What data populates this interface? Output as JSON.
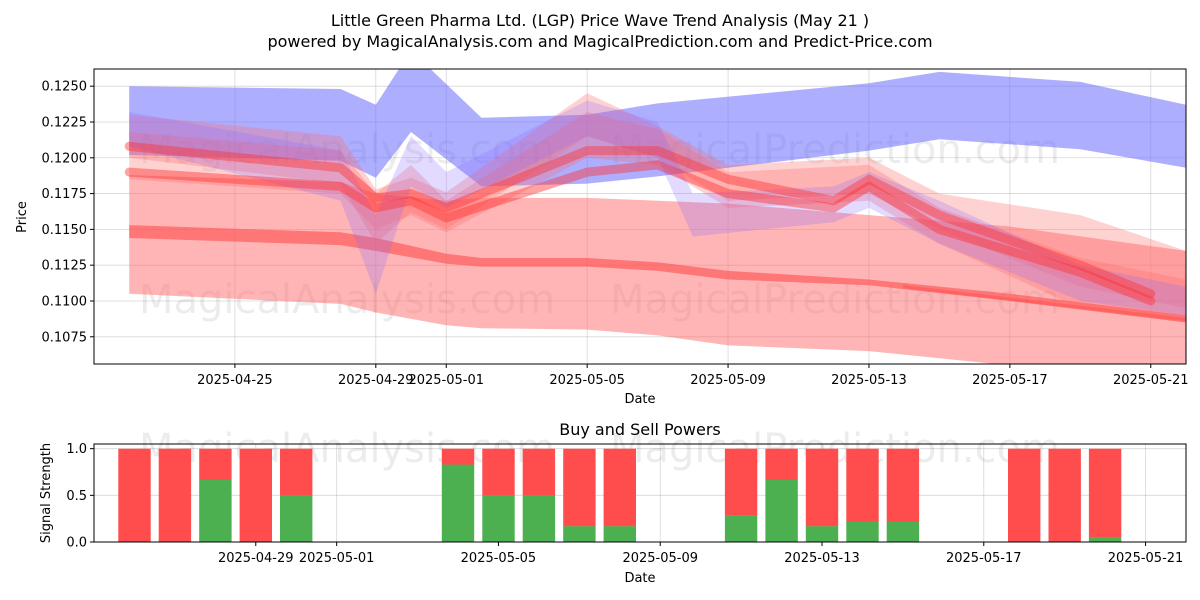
{
  "title_line1": "Little Green Pharma Ltd. (LGP) Price Wave Trend Analysis (May 21 )",
  "title_line2": "powered by MagicalAnalysis.com and MagicalPrediction.com and Predict-Price.com",
  "watermarks": [
    "MagicalAnalysis.com",
    "MagicalPrediction.com"
  ],
  "chart_data": [
    {
      "type": "area",
      "title": "",
      "xlabel": "Date",
      "ylabel": "Price",
      "ylim": [
        0.1056,
        0.1262
      ],
      "xlim": [
        "2025-04-21",
        "2025-05-22"
      ],
      "grid": true,
      "yticks": [
        0.1075,
        0.11,
        0.1125,
        0.115,
        0.1175,
        0.12,
        0.1225,
        0.125
      ],
      "ytick_labels": [
        "0.1075",
        "0.1100",
        "0.1125",
        "0.1150",
        "0.1175",
        "0.1200",
        "0.1225",
        "0.1250"
      ],
      "xticks": [
        "2025-04-25",
        "2025-04-29",
        "2025-05-01",
        "2025-05-05",
        "2025-05-09",
        "2025-05-13",
        "2025-05-17",
        "2025-05-21"
      ],
      "colors": {
        "buy_band": "#6b6bff",
        "sell_band": "#ff6b6b",
        "sell_line": "#ff4d4d"
      },
      "bands": [
        {
          "color": "#6b6bff",
          "opacity": 0.55,
          "x": [
            "2025-04-22",
            "2025-04-28",
            "2025-04-29",
            "2025-04-30",
            "2025-05-02",
            "2025-05-05",
            "2025-05-07",
            "2025-05-13",
            "2025-05-15",
            "2025-05-19",
            "2025-05-22"
          ],
          "upper": [
            0.125,
            0.1248,
            0.1237,
            0.1275,
            0.1228,
            0.123,
            0.1238,
            0.1252,
            0.126,
            0.1253,
            0.1237
          ],
          "lower": [
            0.1202,
            0.1198,
            0.1186,
            0.1218,
            0.118,
            0.1182,
            0.1187,
            0.1205,
            0.1213,
            0.1206,
            0.1193
          ]
        },
        {
          "color": "#ff6b6b",
          "opacity": 0.5,
          "x": [
            "2025-04-22",
            "2025-04-28",
            "2025-04-29",
            "2025-05-01",
            "2025-05-02",
            "2025-05-05",
            "2025-05-07",
            "2025-05-09",
            "2025-05-13",
            "2025-05-17",
            "2025-05-22"
          ],
          "upper": [
            0.1188,
            0.1183,
            0.1175,
            0.117,
            0.1172,
            0.1172,
            0.117,
            0.1168,
            0.116,
            0.1152,
            0.1135
          ],
          "lower": [
            0.1105,
            0.1098,
            0.1092,
            0.1083,
            0.1081,
            0.108,
            0.1076,
            0.1069,
            0.1065,
            0.1055,
            0.1048
          ]
        },
        {
          "color": "#ff4d4d",
          "opacity": 0.6,
          "x": [
            "2025-04-22",
            "2025-04-28",
            "2025-04-29",
            "2025-05-01",
            "2025-05-02",
            "2025-05-05",
            "2025-05-07",
            "2025-05-09",
            "2025-05-13",
            "2025-05-17",
            "2025-05-22"
          ],
          "upper": [
            0.1153,
            0.1148,
            0.1144,
            0.1133,
            0.113,
            0.113,
            0.1127,
            0.1121,
            0.1115,
            0.1105,
            0.109
          ],
          "lower": [
            0.1144,
            0.1139,
            0.1135,
            0.1126,
            0.1124,
            0.1124,
            0.1121,
            0.1115,
            0.1111,
            0.11,
            0.1085
          ]
        },
        {
          "color": "#ff6b6b",
          "opacity": 0.3,
          "x": [
            "2025-04-22",
            "2025-04-28",
            "2025-04-29",
            "2025-04-30",
            "2025-05-01",
            "2025-05-05",
            "2025-05-07",
            "2025-05-09",
            "2025-05-13",
            "2025-05-15",
            "2025-05-19",
            "2025-05-22"
          ],
          "upper": [
            0.123,
            0.1215,
            0.1178,
            0.1186,
            0.1176,
            0.1245,
            0.1222,
            0.1195,
            0.12,
            0.1175,
            0.116,
            0.1135
          ],
          "lower": [
            0.12,
            0.1182,
            0.114,
            0.1162,
            0.115,
            0.1215,
            0.12,
            0.117,
            0.1175,
            0.115,
            0.111,
            0.1095
          ]
        },
        {
          "color": "#ff6b6b",
          "opacity": 0.3,
          "x": [
            "2025-04-22",
            "2025-04-28",
            "2025-04-29",
            "2025-04-30",
            "2025-05-01",
            "2025-05-05",
            "2025-05-07",
            "2025-05-09",
            "2025-05-13",
            "2025-05-15",
            "2025-05-19",
            "2025-05-22"
          ],
          "upper": [
            0.1218,
            0.1205,
            0.1175,
            0.1195,
            0.117,
            0.1232,
            0.122,
            0.119,
            0.1195,
            0.1165,
            0.113,
            0.1115
          ],
          "lower": [
            0.1185,
            0.1175,
            0.115,
            0.116,
            0.1148,
            0.12,
            0.1195,
            0.1165,
            0.117,
            0.114,
            0.1095,
            0.1085
          ]
        },
        {
          "color": "#8a6bff",
          "opacity": 0.25,
          "x": [
            "2025-04-22",
            "2025-04-28",
            "2025-04-29",
            "2025-04-30",
            "2025-05-01",
            "2025-05-05",
            "2025-05-07",
            "2025-05-08",
            "2025-05-12",
            "2025-05-13",
            "2025-05-15",
            "2025-05-19",
            "2025-05-22"
          ],
          "upper": [
            0.1232,
            0.1205,
            0.116,
            0.1215,
            0.119,
            0.124,
            0.1225,
            0.1175,
            0.118,
            0.119,
            0.117,
            0.1125,
            0.111
          ],
          "lower": [
            0.1208,
            0.117,
            0.1105,
            0.118,
            0.1165,
            0.1215,
            0.12,
            0.1145,
            0.1155,
            0.1165,
            0.114,
            0.11,
            0.109
          ]
        }
      ],
      "lines": [
        {
          "color": "#ff3333",
          "opacity": 0.45,
          "width": 9,
          "x": [
            "2025-04-22",
            "2025-04-28",
            "2025-04-29",
            "2025-04-30",
            "2025-05-01",
            "2025-05-05",
            "2025-05-07",
            "2025-05-09",
            "2025-05-12",
            "2025-05-13",
            "2025-05-15",
            "2025-05-19",
            "2025-05-21"
          ],
          "y": [
            0.1208,
            0.1193,
            0.1172,
            0.1175,
            0.1165,
            0.1205,
            0.1205,
            0.1185,
            0.117,
            0.1185,
            0.116,
            0.1125,
            0.1105
          ]
        },
        {
          "color": "#ff3333",
          "opacity": 0.45,
          "width": 9,
          "x": [
            "2025-04-22",
            "2025-04-28",
            "2025-04-29",
            "2025-04-30",
            "2025-05-01",
            "2025-05-05",
            "2025-05-07",
            "2025-05-09",
            "2025-05-12",
            "2025-05-13",
            "2025-05-15",
            "2025-05-19",
            "2025-05-21"
          ],
          "y": [
            0.119,
            0.118,
            0.1165,
            0.117,
            0.1158,
            0.119,
            0.1195,
            0.1175,
            0.1165,
            0.118,
            0.115,
            0.112,
            0.11
          ]
        },
        {
          "color": "#ff4d4d",
          "opacity": 0.5,
          "width": 3,
          "x": [
            "2025-05-14",
            "2025-05-22"
          ],
          "y": [
            0.111,
            0.1087
          ]
        }
      ]
    },
    {
      "type": "bar",
      "title": "Buy and Sell Powers",
      "xlabel": "Date",
      "ylabel": "Signal Strength",
      "ylim": [
        0,
        1.05
      ],
      "grid": true,
      "yticks": [
        0.0,
        0.5,
        1.0
      ],
      "ytick_labels": [
        "0.0",
        "0.5",
        "1.0"
      ],
      "xlim": [
        "2025-04-25",
        "2025-05-22"
      ],
      "xticks": [
        "2025-04-29",
        "2025-05-01",
        "2025-05-05",
        "2025-05-09",
        "2025-05-13",
        "2025-05-17",
        "2025-05-21"
      ],
      "colors": {
        "buy": "#4caf50",
        "sell": "#ff4d4d"
      },
      "categories": [
        "2025-04-26",
        "2025-04-27",
        "2025-04-28",
        "2025-04-29",
        "2025-04-30",
        "2025-05-04",
        "2025-05-05",
        "2025-05-06",
        "2025-05-07",
        "2025-05-08",
        "2025-05-11",
        "2025-05-12",
        "2025-05-13",
        "2025-05-14",
        "2025-05-15",
        "2025-05-18",
        "2025-05-19",
        "2025-05-20"
      ],
      "series": [
        {
          "values": [
            0.0,
            0.0,
            0.67,
            0.0,
            0.5,
            0.83,
            0.5,
            0.5,
            0.17,
            0.17,
            0.28,
            0.67,
            0.17,
            0.22,
            0.22,
            0.0,
            0.0,
            0.05
          ]
        },
        {
          "values": [
            1.0,
            1.0,
            0.33,
            1.0,
            0.5,
            0.17,
            0.5,
            0.5,
            0.83,
            0.83,
            0.72,
            0.33,
            0.83,
            0.78,
            0.78,
            1.0,
            1.0,
            0.95
          ]
        }
      ]
    }
  ]
}
